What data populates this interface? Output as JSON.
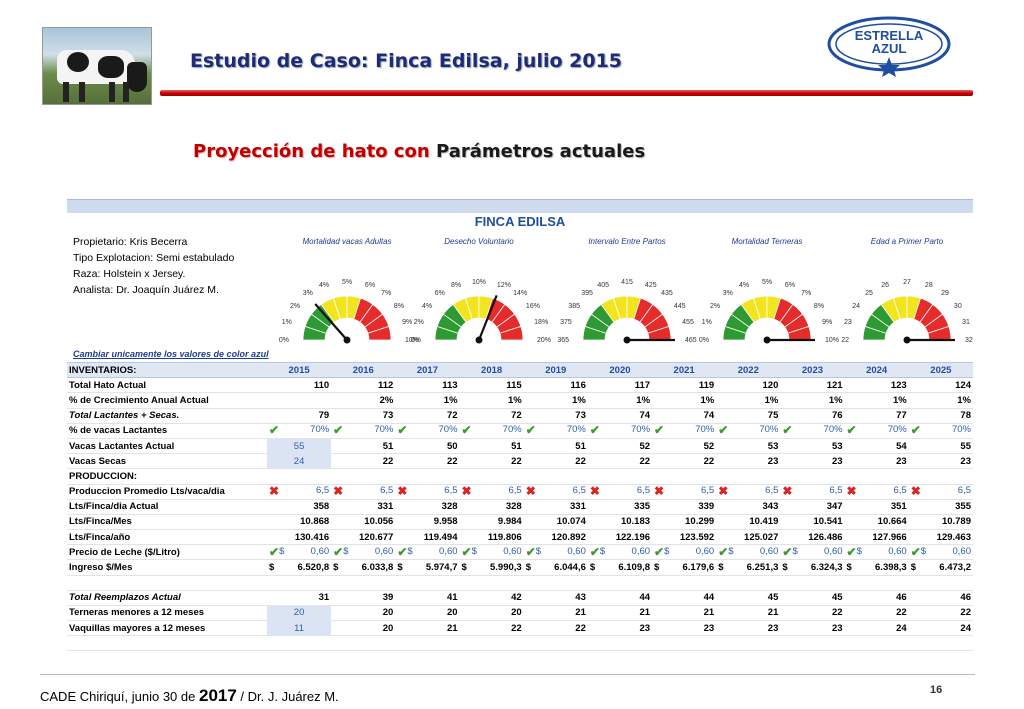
{
  "header": {
    "title": "Estudio de Caso: Finca Edilsa, julio 2015",
    "logo_text_1": "ESTRELLA",
    "logo_text_2": "AZUL"
  },
  "subtitle_main": "Proyección de hato con ",
  "subtitle_accent": "Parámetros actuales",
  "farm": {
    "name": "FINCA EDILSA",
    "owner": "Propietario: Kris Becerra",
    "type": "Tipo Explotacion: Semi estabulado",
    "breed": "Raza: Holstein x Jersey.",
    "analyst": "Analista: Dr. Joaquín Juárez M."
  },
  "gauges": [
    {
      "title": "Mortalidad vacas Adultas",
      "ticks": [
        "0%",
        "1%",
        "2%",
        "3%",
        "4%",
        "5%",
        "6%",
        "7%",
        "8%",
        "9%",
        "10%"
      ],
      "needle_fraction": 0.27
    },
    {
      "title": "Desecho Voluntario",
      "ticks": [
        "0%",
        "2%",
        "4%",
        "6%",
        "8%",
        "10%",
        "12%",
        "14%",
        "16%",
        "18%",
        "20%"
      ],
      "needle_fraction": 0.62
    },
    {
      "title": "Intervalo Entre Partos",
      "ticks": [
        "365",
        "375",
        "385",
        "395",
        "405",
        "415",
        "425",
        "435",
        "445",
        "455",
        "465"
      ],
      "needle_fraction": 1.0
    },
    {
      "title": "Mortalidad Terneras",
      "ticks": [
        "0%",
        "1%",
        "2%",
        "3%",
        "4%",
        "5%",
        "6%",
        "7%",
        "8%",
        "9%",
        "10%"
      ],
      "needle_fraction": 1.0
    },
    {
      "title": "Edad a Primer Parto",
      "ticks": [
        "22",
        "23",
        "24",
        "25",
        "26",
        "27",
        "28",
        "29",
        "30",
        "31",
        "32"
      ],
      "needle_fraction": 1.0
    }
  ],
  "instruction": "Cambiar unicamente los valores de color azul",
  "table": {
    "header_label": "INVENTARIOS:",
    "years": [
      "2015",
      "2016",
      "2017",
      "2018",
      "2019",
      "2020",
      "2021",
      "2022",
      "2023",
      "2024",
      "2025"
    ],
    "rows": {
      "total_hato": {
        "label": "Total Hato Actual",
        "values": [
          "110",
          "112",
          "113",
          "115",
          "116",
          "117",
          "119",
          "120",
          "121",
          "123",
          "124"
        ]
      },
      "crecimiento": {
        "label": "% de Crecimiento Anual Actual",
        "values": [
          "",
          "2%",
          "1%",
          "1%",
          "1%",
          "1%",
          "1%",
          "1%",
          "1%",
          "1%",
          "1%"
        ]
      },
      "lactantes_secas": {
        "label": "Total Lactantes + Secas.",
        "values": [
          "79",
          "73",
          "72",
          "72",
          "73",
          "74",
          "74",
          "75",
          "76",
          "77",
          "78"
        ]
      },
      "pct_lactantes": {
        "label": "% de vacas Lactantes",
        "values": [
          "70%",
          "70%",
          "70%",
          "70%",
          "70%",
          "70%",
          "70%",
          "70%",
          "70%",
          "70%",
          "70%"
        ]
      },
      "vacas_lactantes": {
        "label": "Vacas Lactantes Actual",
        "values": [
          "55",
          "51",
          "50",
          "51",
          "51",
          "52",
          "52",
          "53",
          "53",
          "54",
          "55"
        ]
      },
      "vacas_secas": {
        "label": "Vacas Secas",
        "values": [
          "24",
          "22",
          "22",
          "22",
          "22",
          "22",
          "22",
          "23",
          "23",
          "23",
          "23"
        ]
      },
      "produccion_hdr": {
        "label": "PRODUCCION:"
      },
      "prod_promedio": {
        "label": "Produccion Promedio Lts/vaca/dia",
        "values": [
          "6,5",
          "6,5",
          "6,5",
          "6,5",
          "6,5",
          "6,5",
          "6,5",
          "6,5",
          "6,5",
          "6,5",
          "6,5"
        ]
      },
      "lts_dia": {
        "label": "Lts/Finca/dia Actual",
        "values": [
          "358",
          "331",
          "328",
          "328",
          "331",
          "335",
          "339",
          "343",
          "347",
          "351",
          "355"
        ]
      },
      "lts_mes": {
        "label": "Lts/Finca/Mes",
        "values": [
          "10.868",
          "10.056",
          "9.958",
          "9.984",
          "10.074",
          "10.183",
          "10.299",
          "10.419",
          "10.541",
          "10.664",
          "10.789"
        ]
      },
      "lts_ano": {
        "label": "Lts/Finca/año",
        "values": [
          "130.416",
          "120.677",
          "119.494",
          "119.806",
          "120.892",
          "122.196",
          "123.592",
          "125.027",
          "126.486",
          "127.966",
          "129.463"
        ]
      },
      "precio": {
        "label": "Precio de Leche ($/Litro)",
        "currency": "$",
        "values": [
          "0,60",
          "0,60",
          "0,60",
          "0,60",
          "0,60",
          "0,60",
          "0,60",
          "0,60",
          "0,60",
          "0,60",
          "0,60"
        ]
      },
      "ingreso": {
        "label": "Ingreso $/Mes",
        "currency": "$",
        "values": [
          "6.520,8",
          "6.033,8",
          "5.974,7",
          "5.990,3",
          "6.044,6",
          "6.109,8",
          "6.179,6",
          "6.251,3",
          "6.324,3",
          "6.398,3",
          "6.473,2"
        ]
      },
      "reemplazos": {
        "label": "Total Reemplazos Actual",
        "values": [
          "31",
          "39",
          "41",
          "42",
          "43",
          "44",
          "44",
          "45",
          "45",
          "46",
          "46"
        ]
      },
      "terneras": {
        "label": "Terneras menores a 12 meses",
        "values": [
          "20",
          "20",
          "20",
          "20",
          "21",
          "21",
          "21",
          "21",
          "22",
          "22",
          "22"
        ]
      },
      "vaquillas": {
        "label": "Vaquillas mayores a 12 meses",
        "values": [
          "11",
          "20",
          "21",
          "22",
          "22",
          "23",
          "23",
          "23",
          "23",
          "24",
          "24"
        ]
      }
    }
  },
  "footer": {
    "pre": "CADE Chiriquí,  junio 30 de ",
    "year": "2017",
    "post": " / Dr. J. Juárez M.",
    "page": "16"
  },
  "colors": {
    "title_blue": "#1f2b7a",
    "accent_red": "#c00000",
    "sheet_blue": "#1f4ea1",
    "check_green": "#3a9c2f",
    "cross_red": "#d22222"
  }
}
